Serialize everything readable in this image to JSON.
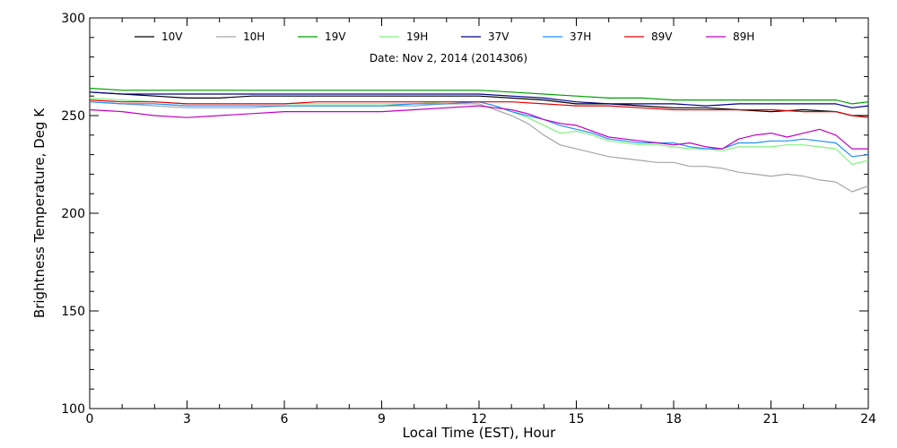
{
  "chart_data": {
    "type": "line",
    "date_label": "Date: Nov  2, 2014 (2014306)",
    "xlabel": "Local Time (EST), Hour",
    "ylabel": "Brightness Temperature, Deg K",
    "xlim": [
      0,
      24
    ],
    "ylim": [
      100,
      300
    ],
    "xticks": [
      0,
      3,
      6,
      9,
      12,
      15,
      18,
      21,
      24
    ],
    "yticks": [
      100,
      150,
      200,
      250,
      300
    ],
    "grid": false,
    "legend_position": "top",
    "series": [
      {
        "name": "10V",
        "color": "#000000",
        "x": [
          0,
          1,
          2,
          3,
          4,
          5,
          6,
          7,
          8,
          9,
          10,
          11,
          12,
          13,
          14,
          15,
          16,
          17,
          18,
          19,
          20,
          21,
          22,
          23,
          23.5,
          24
        ],
        "values": [
          262,
          261,
          260,
          259,
          259,
          260,
          260,
          260,
          260,
          260,
          260,
          260,
          260,
          259,
          258,
          256,
          256,
          255,
          254,
          254,
          253,
          252,
          253,
          252,
          250,
          250
        ]
      },
      {
        "name": "10H",
        "color": "#a6a6a6",
        "x": [
          0,
          1,
          2,
          3,
          4,
          5,
          6,
          7,
          8,
          9,
          10,
          11,
          12,
          12.5,
          13,
          13.5,
          14,
          14.5,
          15,
          15.5,
          16,
          16.5,
          17,
          17.5,
          18,
          18.5,
          19,
          19.5,
          20,
          20.5,
          21,
          21.5,
          22,
          22.5,
          23,
          23.5,
          24
        ],
        "values": [
          257,
          256,
          255,
          254,
          254,
          254,
          255,
          255,
          255,
          255,
          255,
          256,
          256,
          253,
          250,
          246,
          240,
          235,
          233,
          231,
          229,
          228,
          227,
          226,
          226,
          224,
          224,
          223,
          221,
          220,
          219,
          220,
          219,
          217,
          216,
          211,
          214
        ]
      },
      {
        "name": "19V",
        "color": "#00a000",
        "x": [
          0,
          1,
          2,
          3,
          4,
          5,
          6,
          7,
          8,
          9,
          10,
          11,
          12,
          13,
          14,
          15,
          16,
          17,
          18,
          19,
          20,
          21,
          22,
          23,
          23.5,
          24
        ],
        "values": [
          264,
          263,
          263,
          263,
          263,
          263,
          263,
          263,
          263,
          263,
          263,
          263,
          263,
          262,
          261,
          260,
          259,
          259,
          258,
          258,
          258,
          258,
          258,
          258,
          256,
          257
        ]
      },
      {
        "name": "19H",
        "color": "#80f080",
        "x": [
          0,
          1,
          2,
          3,
          4,
          5,
          6,
          7,
          8,
          9,
          10,
          11,
          12,
          12.5,
          13,
          13.5,
          14,
          14.5,
          15,
          15.5,
          16,
          16.5,
          17,
          17.5,
          18,
          18.5,
          19,
          19.5,
          20,
          20.5,
          21,
          21.5,
          22,
          22.5,
          23,
          23.5,
          24
        ],
        "values": [
          259,
          258,
          257,
          256,
          256,
          256,
          256,
          256,
          256,
          256,
          256,
          257,
          257,
          255,
          252,
          249,
          245,
          241,
          242,
          240,
          237,
          236,
          235,
          235,
          234,
          233,
          233,
          232,
          234,
          234,
          234,
          235,
          235,
          234,
          233,
          225,
          227
        ]
      },
      {
        "name": "37V",
        "color": "#00008b",
        "x": [
          0,
          1,
          2,
          3,
          4,
          5,
          6,
          7,
          8,
          9,
          10,
          11,
          12,
          13,
          14,
          15,
          16,
          17,
          18,
          19,
          20,
          21,
          22,
          23,
          23.5,
          24
        ],
        "values": [
          262,
          261,
          261,
          261,
          261,
          261,
          261,
          261,
          261,
          261,
          261,
          261,
          261,
          260,
          259,
          257,
          256,
          256,
          256,
          255,
          256,
          256,
          256,
          256,
          254,
          255
        ]
      },
      {
        "name": "37H",
        "color": "#1e90ff",
        "x": [
          0,
          1,
          2,
          3,
          4,
          5,
          6,
          7,
          8,
          9,
          10,
          11,
          12,
          12.5,
          13,
          13.5,
          14,
          14.5,
          15,
          15.5,
          16,
          16.5,
          17,
          17.5,
          18,
          18.5,
          19,
          19.5,
          20,
          20.5,
          21,
          21.5,
          22,
          22.5,
          23,
          23.5,
          24
        ],
        "values": [
          257,
          256,
          256,
          255,
          255,
          255,
          255,
          255,
          255,
          255,
          256,
          256,
          257,
          255,
          252,
          250,
          248,
          245,
          243,
          241,
          238,
          237,
          236,
          236,
          236,
          234,
          233,
          233,
          236,
          236,
          237,
          237,
          238,
          237,
          236,
          229,
          230
        ]
      },
      {
        "name": "89V",
        "color": "#dd0000",
        "x": [
          0,
          1,
          2,
          3,
          4,
          5,
          6,
          7,
          8,
          9,
          10,
          11,
          12,
          13,
          14,
          15,
          16,
          17,
          18,
          19,
          20,
          21,
          22,
          23,
          23.5,
          24
        ],
        "values": [
          258,
          257,
          257,
          256,
          256,
          256,
          256,
          257,
          257,
          257,
          257,
          257,
          257,
          257,
          256,
          255,
          255,
          254,
          253,
          253,
          253,
          253,
          252,
          252,
          250,
          249
        ]
      },
      {
        "name": "89H",
        "color": "#c000c0",
        "x": [
          0,
          1,
          2,
          3,
          4,
          5,
          6,
          7,
          8,
          9,
          10,
          11,
          12,
          12.5,
          13,
          13.5,
          14,
          14.5,
          15,
          15.5,
          16,
          16.5,
          17,
          17.5,
          18,
          18.5,
          19,
          19.5,
          20,
          20.5,
          21,
          21.5,
          22,
          22.5,
          23,
          23.5,
          24
        ],
        "values": [
          253,
          252,
          250,
          249,
          250,
          251,
          252,
          252,
          252,
          252,
          253,
          254,
          255,
          254,
          253,
          251,
          248,
          246,
          245,
          242,
          239,
          238,
          237,
          236,
          235,
          236,
          234,
          233,
          238,
          240,
          241,
          239,
          241,
          243,
          240,
          233,
          233
        ]
      }
    ]
  }
}
